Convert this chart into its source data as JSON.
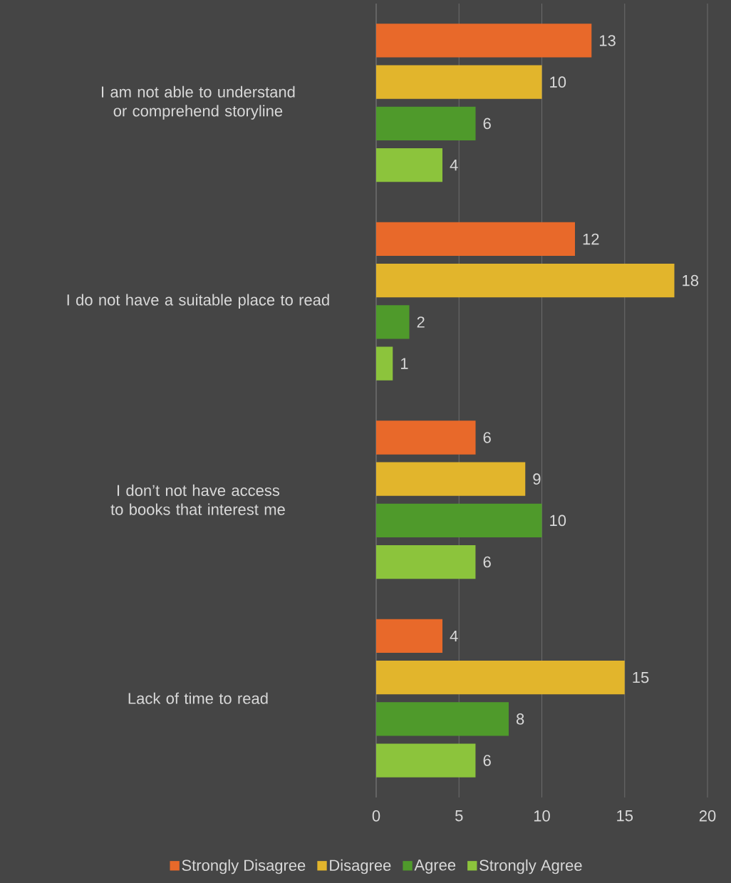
{
  "chart_data": {
    "type": "bar",
    "orientation": "horizontal",
    "categories": [
      "I am not able to understand or comprehend storyline",
      "I do not have a suitable place to read",
      "I don’t not have access to books that interest me",
      "Lack of time to read"
    ],
    "series": [
      {
        "name": "Strongly Disagree",
        "color": "#e8692a",
        "values": [
          13,
          12,
          6,
          4
        ]
      },
      {
        "name": "Disagree",
        "color": "#e2b52c",
        "values": [
          10,
          18,
          9,
          15
        ]
      },
      {
        "name": "Agree",
        "color": "#4f9a2b",
        "values": [
          6,
          2,
          10,
          8
        ]
      },
      {
        "name": "Strongly Agree",
        "color": "#8cc43c",
        "values": [
          4,
          1,
          6,
          6
        ]
      }
    ],
    "xlim": [
      0,
      20
    ],
    "xticks": [
      0,
      5,
      10,
      15,
      20
    ],
    "grid": "x",
    "legend": "bottom",
    "data_labels": true
  }
}
